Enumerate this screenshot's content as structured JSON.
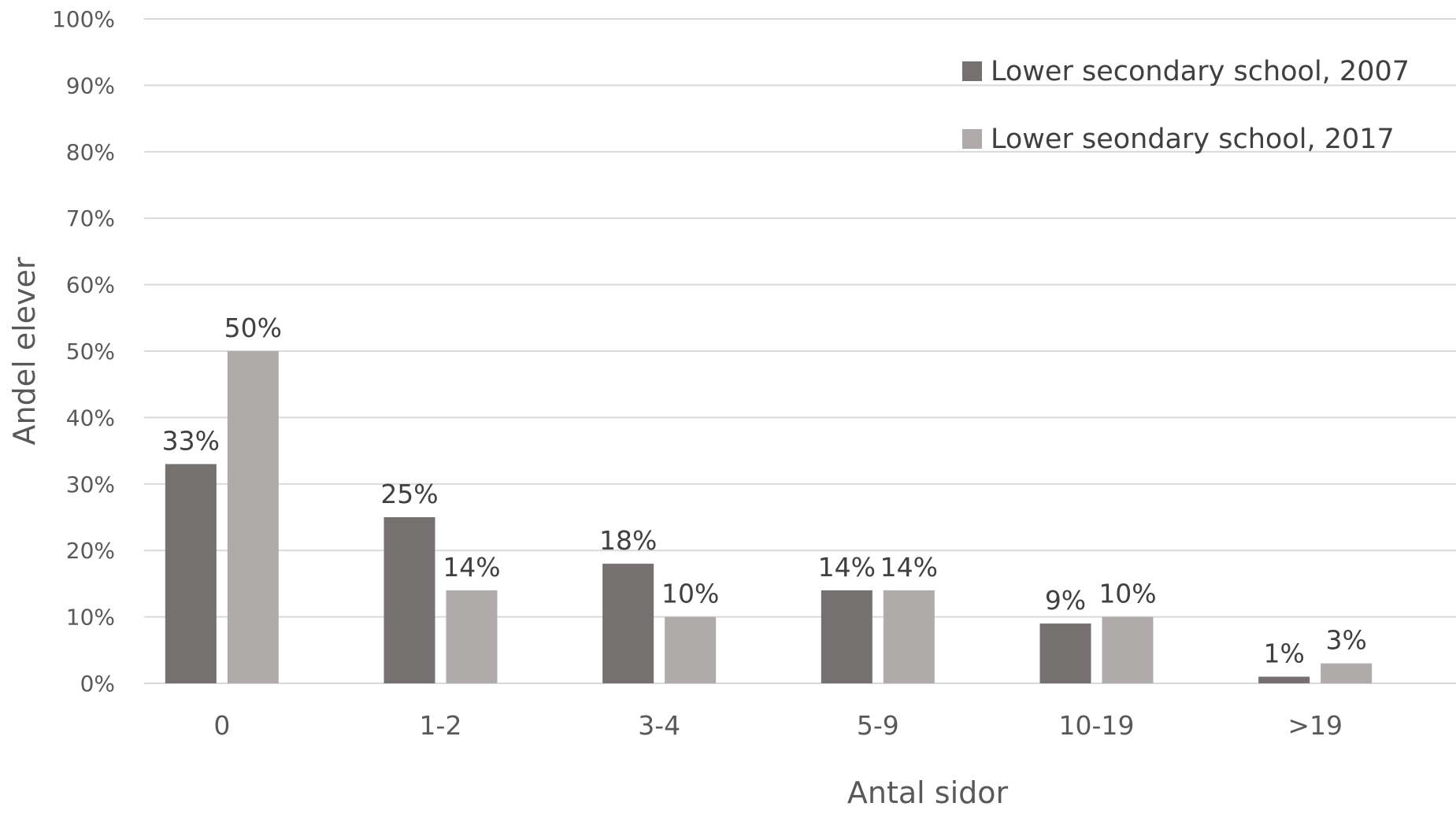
{
  "chart_data": {
    "type": "bar",
    "categories": [
      "0",
      "1-2",
      "3-4",
      "5-9",
      "10-19",
      ">19"
    ],
    "series": [
      {
        "name": "Lower secondary school, 2007",
        "values": [
          33,
          25,
          18,
          14,
          9,
          1
        ],
        "labels": [
          "33%",
          "25%",
          "18%",
          "14%",
          "9%",
          "1%"
        ],
        "color": "#767171"
      },
      {
        "name": "Lower seondary school, 2017",
        "values": [
          50,
          14,
          10,
          14,
          10,
          3
        ],
        "labels": [
          "50%",
          "14%",
          "10%",
          "14%",
          "10%",
          "3%"
        ],
        "color": "#afabab"
      }
    ],
    "xlabel": "Antal sidor",
    "ylabel": "Andel elever",
    "ylim": [
      0,
      100
    ],
    "yticks": [
      0,
      10,
      20,
      30,
      40,
      50,
      60,
      70,
      80,
      90,
      100
    ],
    "ytick_labels": [
      "0%",
      "10%",
      "20%",
      "30%",
      "40%",
      "50%",
      "60%",
      "70%",
      "80%",
      "90%",
      "100%"
    ],
    "grid": true,
    "legend": "top-right"
  }
}
